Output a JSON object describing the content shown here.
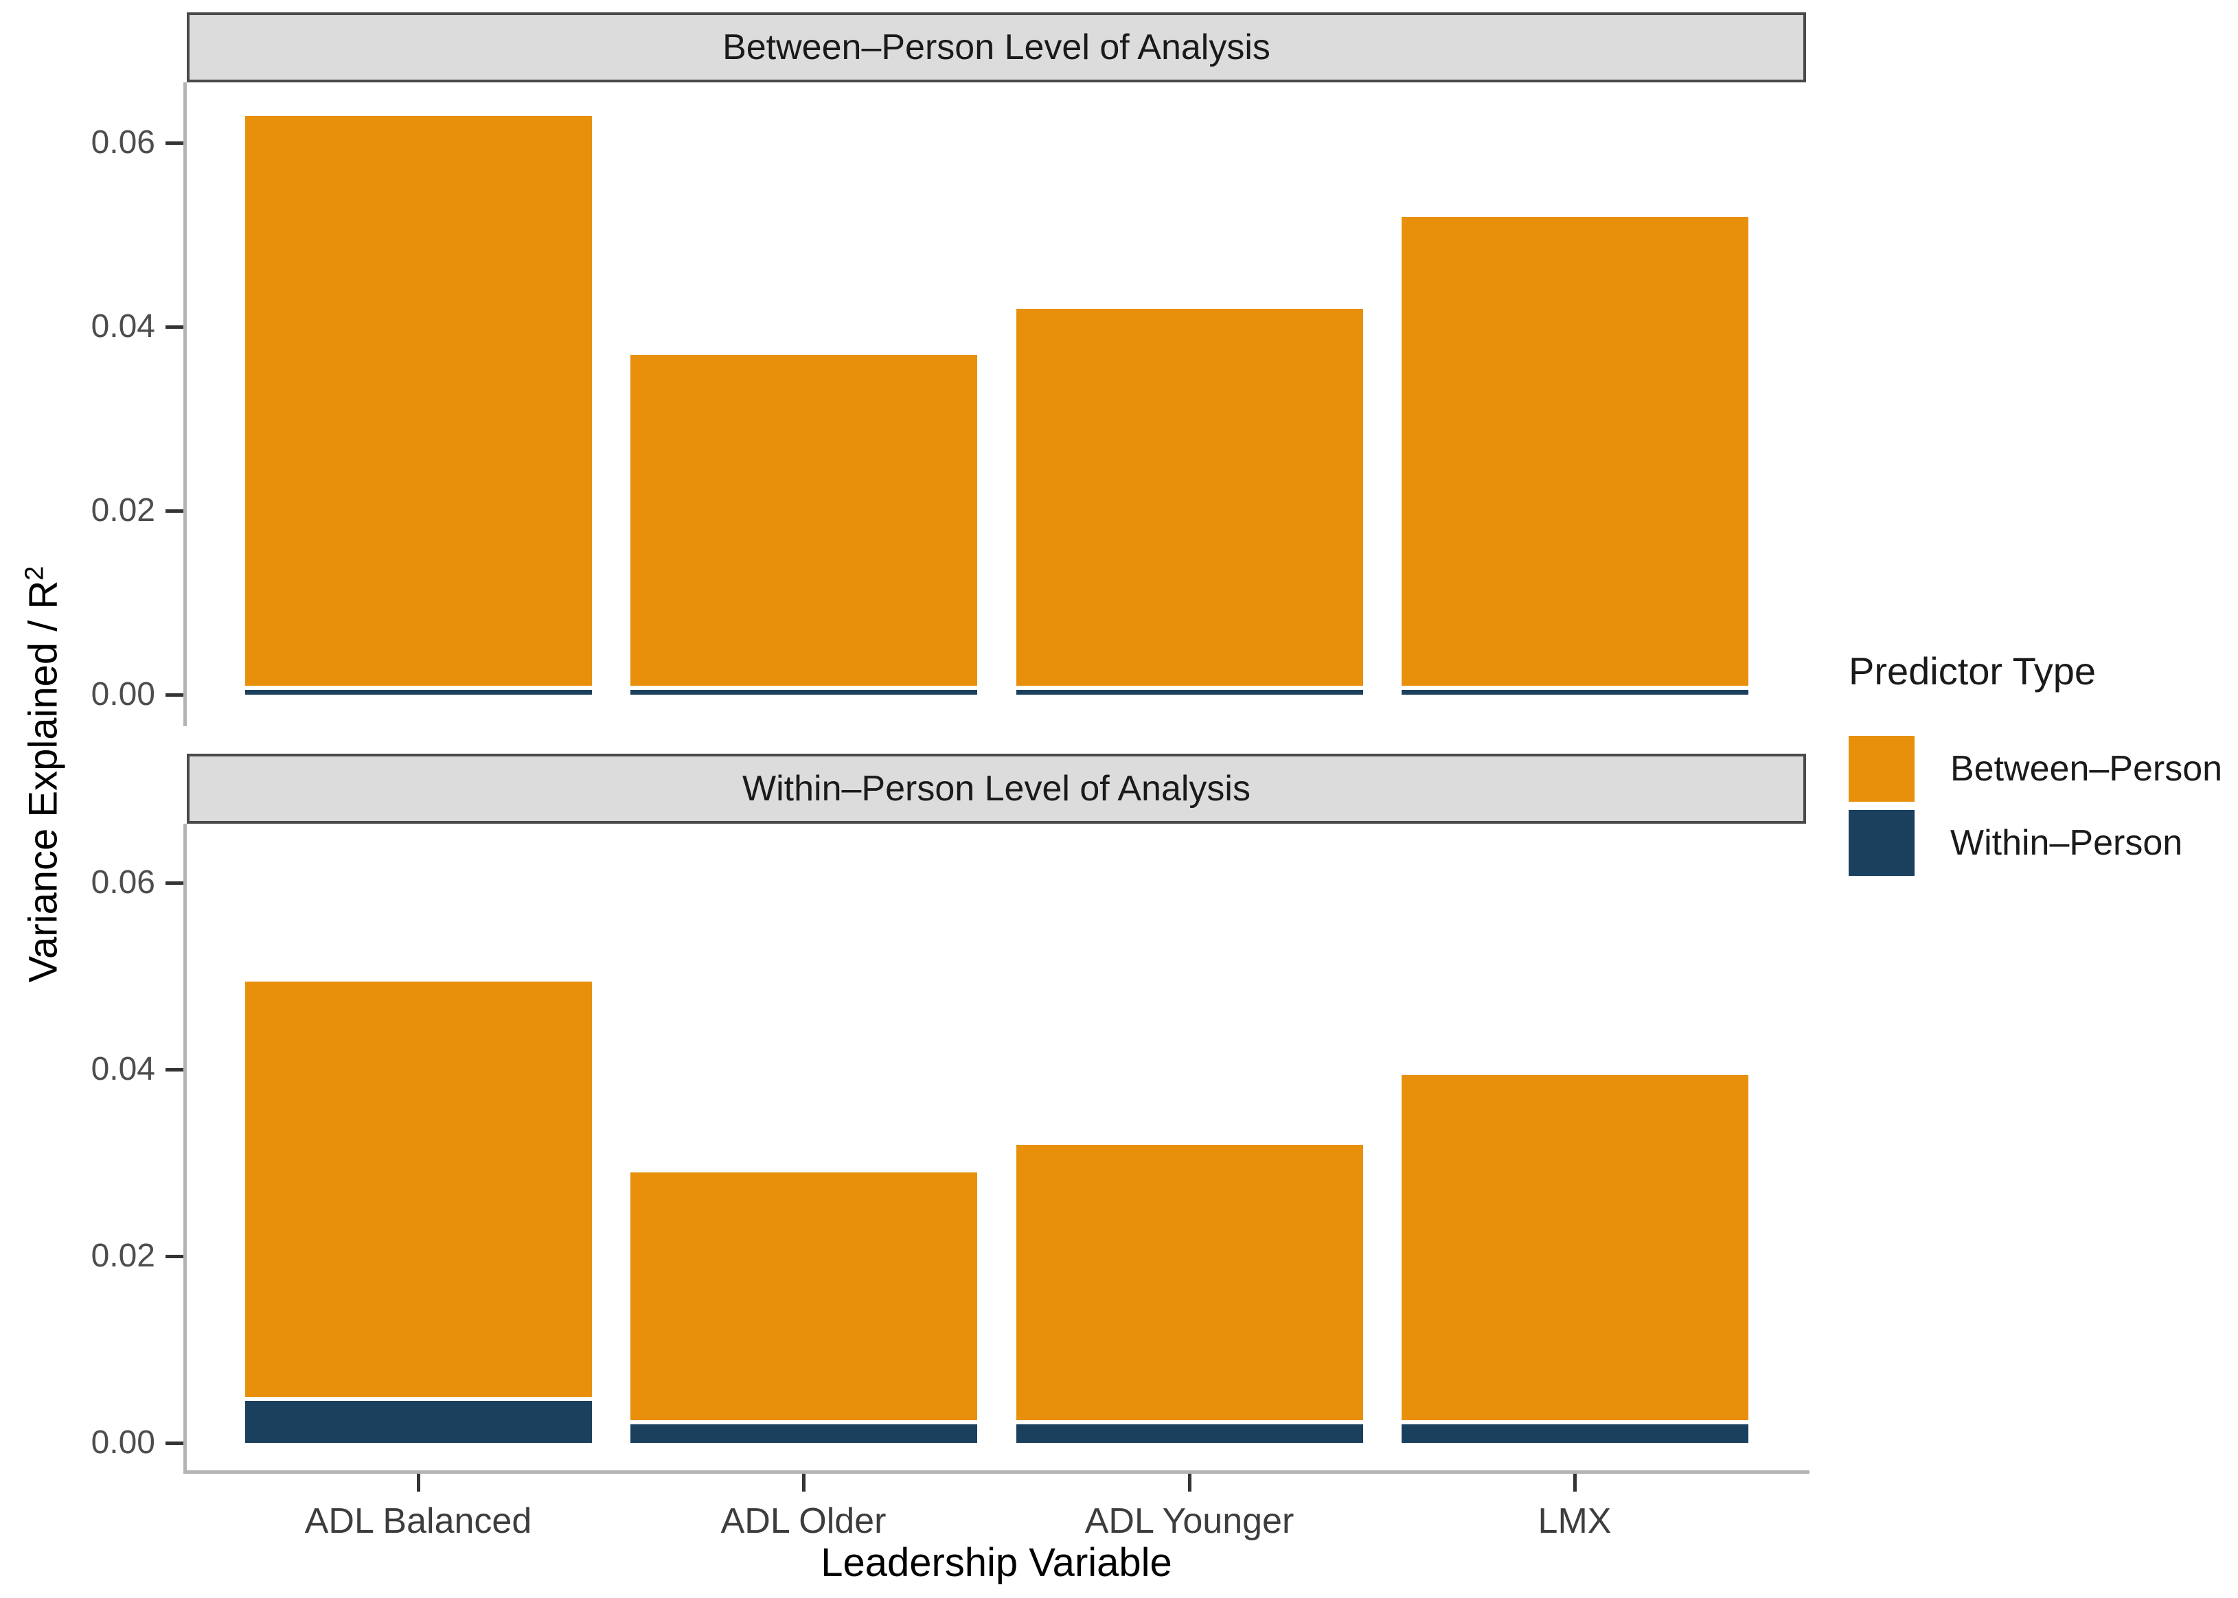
{
  "figure": {
    "y_axis_title_base": "Variance Explained / R",
    "y_axis_title_sup": "2",
    "x_axis_title": "Leadership Variable"
  },
  "chart_data": {
    "type": "bar",
    "subtype": "stacked-vertical-faceted",
    "grid": false,
    "legend_position": "right",
    "categories": [
      "ADL Balanced",
      "ADL Older",
      "ADL Younger",
      "LMX"
    ],
    "xlabel": "Leadership Variable",
    "ylabel": "Variance Explained / R2",
    "ylim": [
      0,
      0.068
    ],
    "y_ticks": [
      0,
      0.02,
      0.04,
      0.06
    ],
    "y_tick_labels": [
      "0.00",
      "0.02",
      "0.04",
      "0.06"
    ],
    "facets": [
      {
        "label": "Between–Person Level of Analysis",
        "series": [
          {
            "name": "Within–Person",
            "color": "#1A405E",
            "values": [
              0.0005,
              0.0005,
              0.0005,
              0.0005
            ]
          },
          {
            "name": "Between–Person",
            "color": "#E8900C",
            "values": [
              0.062,
              0.036,
              0.041,
              0.051
            ]
          }
        ],
        "stack_totals": [
          0.0625,
          0.0365,
          0.0415,
          0.0515
        ]
      },
      {
        "label": "Within–Person Level of Analysis",
        "series": [
          {
            "name": "Within–Person",
            "color": "#1A405E",
            "values": [
              0.0045,
              0.002,
              0.002,
              0.002
            ]
          },
          {
            "name": "Between–Person",
            "color": "#E8900C",
            "values": [
              0.0445,
              0.0265,
              0.0295,
              0.037
            ]
          }
        ],
        "stack_totals": [
          0.049,
          0.0285,
          0.0315,
          0.039
        ]
      }
    ]
  },
  "legend": {
    "title": "Predictor Type",
    "items": [
      {
        "label": "Between–Person",
        "color": "#E8900C"
      },
      {
        "label": "Within–Person",
        "color": "#1A405E"
      }
    ]
  },
  "colors": {
    "between_person": "#E8900C",
    "within_person": "#1A405E",
    "strip_background": "#DCDCDC",
    "strip_border": "#4A4A4A",
    "axis_line": "#B4B4B4",
    "tick_mark": "#333333",
    "tick_label": "#4D4D4D"
  }
}
